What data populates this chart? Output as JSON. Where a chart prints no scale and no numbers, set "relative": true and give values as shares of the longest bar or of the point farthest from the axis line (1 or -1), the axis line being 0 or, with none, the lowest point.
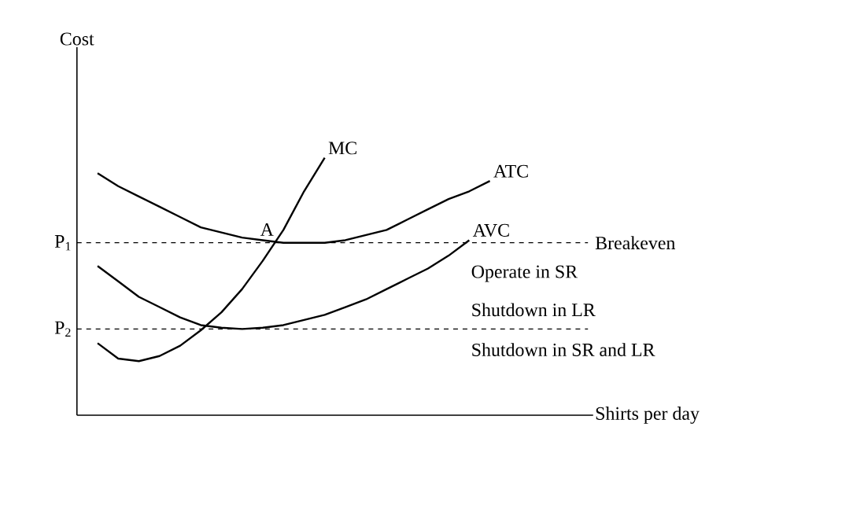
{
  "chart_data": {
    "type": "line",
    "relative": true,
    "legend": false,
    "marker": "none",
    "line_style": "solid",
    "categories": [
      null,
      null,
      null,
      null,
      null,
      null,
      null,
      null,
      null,
      null,
      null,
      null,
      null,
      null,
      null,
      null,
      null,
      null,
      null,
      null
    ],
    "series": [
      {
        "name": "MC",
        "color": "#000000",
        "values": [
          0.28,
          0.22,
          0.21,
          0.23,
          0.27,
          0.33,
          0.4,
          0.49,
          0.6,
          0.72,
          0.87,
          1.0,
          null,
          null,
          null,
          null,
          null,
          null,
          null,
          null
        ]
      },
      {
        "name": "ATC",
        "color": "#000000",
        "values": [
          0.94,
          0.89,
          0.85,
          0.81,
          0.77,
          0.73,
          0.71,
          0.69,
          0.68,
          0.67,
          0.67,
          0.67,
          0.68,
          0.7,
          0.72,
          0.76,
          0.8,
          0.84,
          0.87,
          0.91
        ]
      },
      {
        "name": "AVC",
        "color": "#000000",
        "values": [
          0.58,
          0.52,
          0.46,
          0.42,
          0.38,
          0.35,
          0.34,
          0.335,
          0.34,
          0.35,
          0.37,
          0.39,
          0.42,
          0.45,
          0.49,
          0.53,
          0.57,
          0.62,
          0.68,
          null
        ]
      }
    ],
    "ref_lines": [
      {
        "axis": "y",
        "value": 0.67,
        "label": "P$_{1}$",
        "color": "#000000",
        "line_style": "dashed"
      },
      {
        "axis": "y",
        "value": 0.335,
        "label": "P$_{2}$",
        "color": "#000000",
        "line_style": "dashed"
      }
    ],
    "annotations": [
      "A",
      "Breakeven",
      "Operate in SR",
      "Shutdown in LR",
      "Shutdown in SR and LR",
      "Shirts per day",
      "Cost"
    ]
  }
}
